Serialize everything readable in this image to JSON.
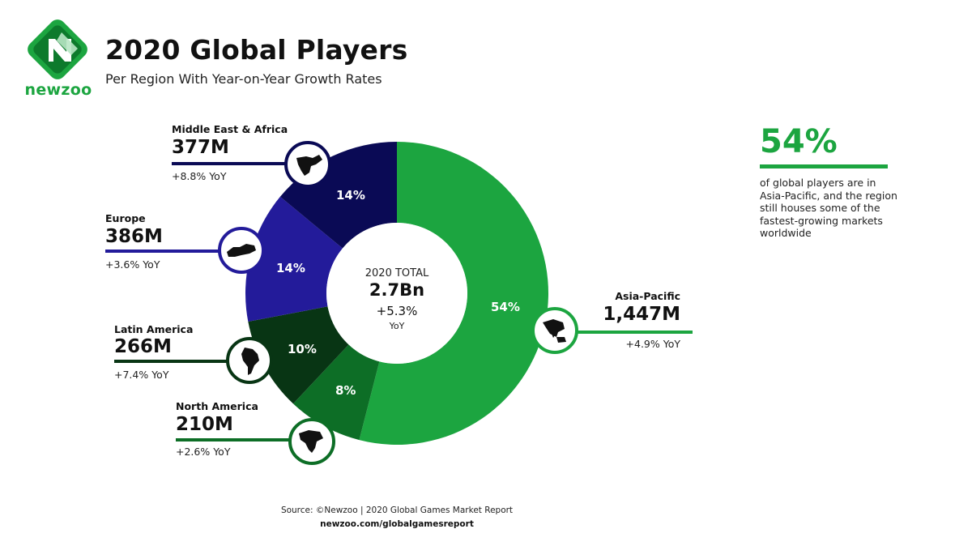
{
  "brand": {
    "logo_text": "newzoo",
    "green": "#1ca540",
    "dark_green": "#0d7a2c"
  },
  "header": {
    "title": "2020 Global Players",
    "subtitle": "Per Region With Year-on-Year Growth Rates"
  },
  "chart_data": {
    "type": "pie",
    "style": "donut",
    "center": {
      "label": "2020 TOTAL",
      "value": "2.7Bn",
      "growth": "+5.3%",
      "growth_unit": "YoY"
    },
    "slices": [
      {
        "region": "Asia-Pacific",
        "value_label": "1,447M",
        "value_millions": 1447,
        "share": 54,
        "share_label": "54%",
        "yoy": "+4.9% YoY",
        "color": "#1ca540",
        "icon": "asia-pacific-map-icon"
      },
      {
        "region": "North America",
        "value_label": "210M",
        "value_millions": 210,
        "share": 8,
        "share_label": "8%",
        "yoy": "+2.6% YoY",
        "color": "#0d6e26",
        "icon": "north-america-map-icon"
      },
      {
        "region": "Latin America",
        "value_label": "266M",
        "value_millions": 266,
        "share": 10,
        "share_label": "10%",
        "yoy": "+7.4% YoY",
        "color": "#083514",
        "icon": "latin-america-map-icon"
      },
      {
        "region": "Europe",
        "value_label": "386M",
        "value_millions": 386,
        "share": 14,
        "share_label": "14%",
        "yoy": "+3.6% YoY",
        "color": "#231b9a",
        "icon": "europe-map-icon"
      },
      {
        "region": "Middle East & Africa",
        "value_label": "377M",
        "value_millions": 377,
        "share": 14,
        "share_label": "14%",
        "yoy": "+8.8% YoY",
        "color": "#0a0a55",
        "icon": "middle-east-africa-map-icon"
      }
    ]
  },
  "highlight": {
    "value": "54%",
    "text": "of global players are in Asia-Pacific, and the region still houses some of the fastest-growing markets worldwide"
  },
  "footer": {
    "source": "Source: ©Newzoo | 2020 Global Games Market Report",
    "url": "newzoo.com/globalgamesreport"
  }
}
